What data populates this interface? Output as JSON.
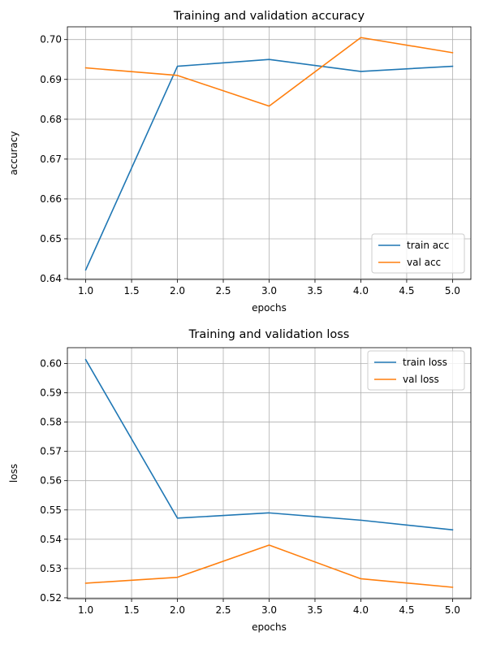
{
  "chart_data": [
    {
      "type": "line",
      "title": "Training and validation accuracy",
      "xlabel": "epochs",
      "ylabel": "accuracy",
      "x": [
        1,
        2,
        3,
        4,
        5
      ],
      "xticks": [
        "1.0",
        "1.5",
        "2.0",
        "2.5",
        "3.0",
        "3.5",
        "4.0",
        "4.5",
        "5.0"
      ],
      "yticks": [
        "0.64",
        "0.65",
        "0.66",
        "0.67",
        "0.68",
        "0.69",
        "0.70"
      ],
      "xlim": [
        0.8,
        5.2
      ],
      "ylim": [
        0.6398,
        0.7032
      ],
      "grid": true,
      "legend_position": "lower right",
      "series": [
        {
          "name": "train acc",
          "color": "#1f77b4",
          "values": [
            0.6422,
            0.6933,
            0.695,
            0.692,
            0.6933
          ]
        },
        {
          "name": "val acc",
          "color": "#ff7f0e",
          "values": [
            0.6929,
            0.691,
            0.6833,
            0.7005,
            0.6967
          ]
        }
      ]
    },
    {
      "type": "line",
      "title": "Training and validation loss",
      "xlabel": "epochs",
      "ylabel": "loss",
      "x": [
        1,
        2,
        3,
        4,
        5
      ],
      "xticks": [
        "1.0",
        "1.5",
        "2.0",
        "2.5",
        "3.0",
        "3.5",
        "4.0",
        "4.5",
        "5.0"
      ],
      "yticks": [
        "0.52",
        "0.53",
        "0.54",
        "0.55",
        "0.56",
        "0.57",
        "0.58",
        "0.59",
        "0.60"
      ],
      "xlim": [
        0.8,
        5.2
      ],
      "ylim": [
        0.5197,
        0.6054
      ],
      "grid": true,
      "legend_position": "upper right",
      "series": [
        {
          "name": "train loss",
          "color": "#1f77b4",
          "values": [
            0.6013,
            0.5472,
            0.549,
            0.5465,
            0.5432
          ]
        },
        {
          "name": "val loss",
          "color": "#ff7f0e",
          "values": [
            0.525,
            0.527,
            0.538,
            0.5265,
            0.5236
          ]
        }
      ]
    }
  ]
}
